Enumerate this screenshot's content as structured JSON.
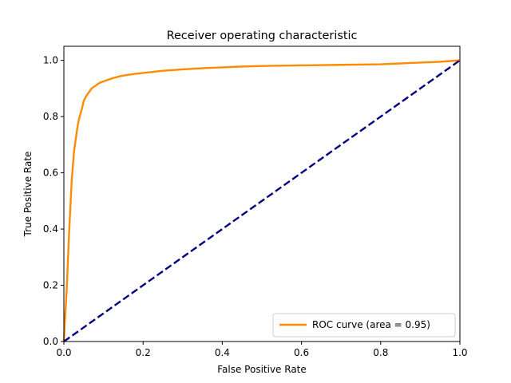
{
  "chart_data": {
    "type": "line",
    "title": "Receiver operating characteristic",
    "xlabel": "False Positive Rate",
    "ylabel": "True Positive Rate",
    "xlim": [
      0.0,
      1.0
    ],
    "ylim": [
      0.0,
      1.05
    ],
    "xticks": [
      "0.0",
      "0.2",
      "0.4",
      "0.6",
      "0.8",
      "1.0"
    ],
    "yticks": [
      "0.0",
      "0.2",
      "0.4",
      "0.6",
      "0.8",
      "1.0"
    ],
    "grid": false,
    "legend_position": "lower right",
    "series": [
      {
        "name": "ROC curve (area = 0.95)",
        "color": "#ff8c00",
        "style": "solid",
        "x": [
          0.0,
          0.002,
          0.005,
          0.008,
          0.01,
          0.012,
          0.015,
          0.018,
          0.02,
          0.023,
          0.026,
          0.03,
          0.034,
          0.038,
          0.042,
          0.046,
          0.05,
          0.055,
          0.06,
          0.065,
          0.07,
          0.08,
          0.09,
          0.1,
          0.12,
          0.14,
          0.16,
          0.18,
          0.2,
          0.25,
          0.3,
          0.35,
          0.4,
          0.45,
          0.5,
          0.6,
          0.7,
          0.8,
          0.85,
          0.9,
          0.95,
          1.0
        ],
        "y": [
          0.0,
          0.06,
          0.13,
          0.21,
          0.28,
          0.35,
          0.44,
          0.52,
          0.58,
          0.63,
          0.68,
          0.72,
          0.76,
          0.79,
          0.81,
          0.83,
          0.855,
          0.87,
          0.88,
          0.89,
          0.9,
          0.91,
          0.92,
          0.925,
          0.935,
          0.943,
          0.948,
          0.952,
          0.955,
          0.963,
          0.968,
          0.972,
          0.975,
          0.978,
          0.98,
          0.982,
          0.984,
          0.986,
          0.989,
          0.992,
          0.995,
          1.0
        ]
      },
      {
        "name": "",
        "color": "#000080",
        "style": "dashed",
        "x": [
          0.0,
          1.0
        ],
        "y": [
          0.0,
          1.0
        ]
      }
    ]
  }
}
